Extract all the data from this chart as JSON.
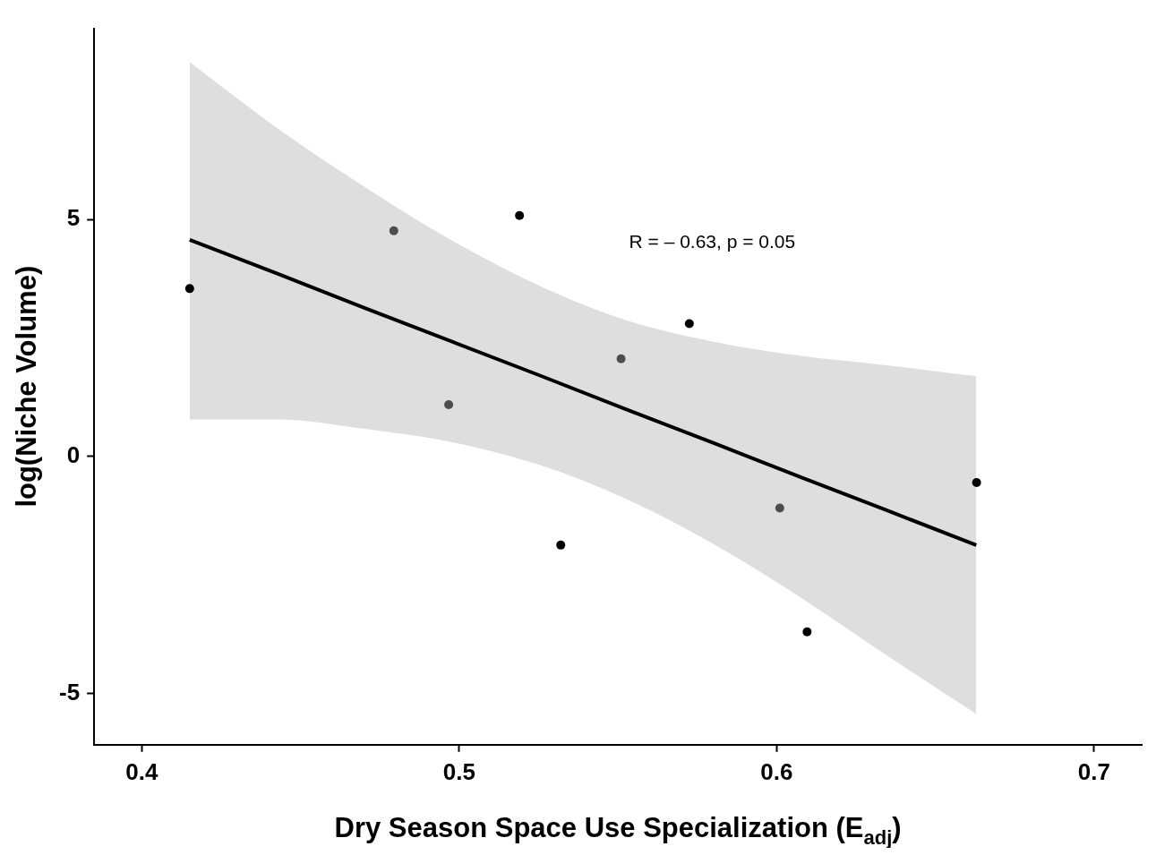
{
  "chart_data": {
    "type": "scatter",
    "xlabel": "Dry Season Space Use Specialization (E$_{adj}$)",
    "ylabel": "log(Niche Volume)",
    "xlim": [
      0.385,
      0.715
    ],
    "xticks": [
      {
        "value": 0.4,
        "label": "0.4"
      },
      {
        "value": 0.5,
        "label": "0.5"
      },
      {
        "value": 0.6,
        "label": "0.6"
      },
      {
        "value": 0.7,
        "label": "0.7"
      }
    ],
    "ylim": [
      -6.08,
      9.03
    ],
    "yticks": [
      -5,
      0,
      5
    ],
    "grid": false,
    "legend": false,
    "annotations": [
      "R = – 0.63, p = 0.05"
    ],
    "series": [
      {
        "type": "line",
        "color": "#000000",
        "x": [
          0.4151,
          0.4429,
          0.4703,
          0.4978,
          0.5253,
          0.5527,
          0.5802,
          0.6077,
          0.6352,
          0.6629
        ],
        "values": [
          4.57,
          3.85,
          3.13,
          2.42,
          1.71,
          0.99,
          0.28,
          -0.44,
          -1.15,
          -1.87
        ],
        "lower": [
          0.78,
          0.78,
          0.58,
          0.3,
          -0.18,
          -0.9,
          -1.85,
          -2.98,
          -4.22,
          -5.43
        ],
        "upper": [
          8.32,
          6.91,
          5.68,
          4.55,
          3.6,
          2.87,
          2.42,
          2.12,
          1.92,
          1.69
        ],
        "line_style": "solid",
        "marker": "none"
      },
      {
        "marker": "circle",
        "x": [
          0.4151,
          0.4794,
          0.519,
          0.4967,
          0.532,
          0.551,
          0.5725,
          0.601,
          0.6096,
          0.663
        ],
        "values": [
          3.54,
          4.76,
          5.08,
          1.09,
          -1.87,
          2.06,
          2.8,
          -1.09,
          -3.7,
          -0.55
        ],
        "colors": [
          "#000000",
          "#4d4d4d",
          "#000000",
          "#4d4d4d",
          "#000000",
          "#4d4d4d",
          "#000000",
          "#4d4d4d",
          "#000000",
          "#000000"
        ]
      }
    ]
  }
}
